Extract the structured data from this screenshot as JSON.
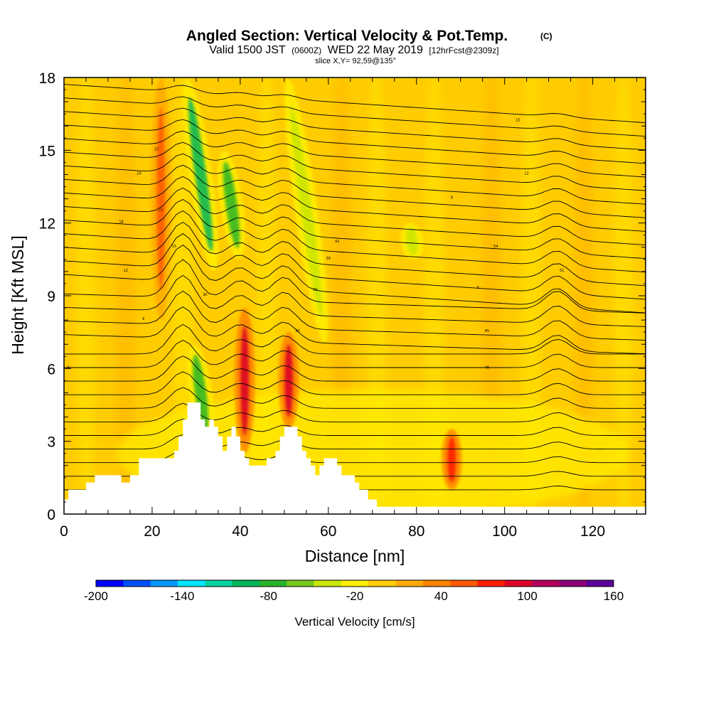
{
  "chart_data": {
    "type": "heatmap",
    "title": "Angled Section: Vertical Velocity & Pot.Temp.",
    "title_unit": "(C)",
    "subtitle_parts": [
      "Valid 1500 JST",
      "(0600Z)",
      "WED 22 May 2019",
      "[12hrFcst@2309z]"
    ],
    "slice_text": "slice X,Y= 92,59@135°",
    "xlabel": "Distance [nm]",
    "ylabel": "Height [Kft MSL]",
    "xlim": [
      0,
      132
    ],
    "ylim": [
      0,
      18
    ],
    "x_ticks": [
      0,
      20,
      40,
      60,
      80,
      100,
      120
    ],
    "y_ticks": [
      0,
      3,
      6,
      9,
      12,
      15,
      18
    ],
    "colorbar": {
      "title": "Vertical Velocity [cm/s]",
      "levels": [
        -200,
        -180,
        -160,
        -140,
        -120,
        -100,
        -80,
        -60,
        -40,
        -20,
        0,
        20,
        40,
        60,
        80,
        100,
        120,
        140,
        160
      ],
      "colors": [
        "#0000ff",
        "#0050ff",
        "#0096ff",
        "#00e6ff",
        "#00d2a0",
        "#00b45a",
        "#28b428",
        "#78c81e",
        "#c8e600",
        "#ffee00",
        "#ffcc00",
        "#ffaa00",
        "#ff8200",
        "#ff5a00",
        "#ff1e00",
        "#dc0028",
        "#b4005a",
        "#8c0078",
        "#5a0096"
      ],
      "tick_labels": [
        -200,
        -140,
        -80,
        -20,
        40,
        100,
        160
      ]
    },
    "background_level_range": [
      0,
      20
    ],
    "updraft_bands": [
      {
        "x_center": 22,
        "z_range": [
          8,
          18
        ],
        "value": 60
      },
      {
        "x_center": 41,
        "z_range": [
          2.5,
          8.5
        ],
        "value": 100
      },
      {
        "x_center": 51,
        "z_range": [
          3.5,
          7.5
        ],
        "value": 100
      },
      {
        "x_center": 88,
        "z_range": [
          1,
          3.5
        ],
        "value": 80
      }
    ],
    "downdraft_bands": [
      {
        "x_center": 31,
        "z_range": [
          10,
          18
        ],
        "value": -100
      },
      {
        "x_center": 38,
        "z_range": [
          10.5,
          15
        ],
        "value": -80
      },
      {
        "x_center": 31,
        "z_range": [
          3,
          7
        ],
        "value": -80
      },
      {
        "x_center": 55,
        "z_range": [
          7,
          18
        ],
        "value": -40
      },
      {
        "x_center": 79,
        "z_range": [
          10.5,
          12
        ],
        "value": -30
      }
    ],
    "terrain": [
      [
        0,
        0.6
      ],
      [
        1,
        1.0
      ],
      [
        5,
        1.3
      ],
      [
        7,
        1.6
      ],
      [
        13,
        1.3
      ],
      [
        15,
        1.6
      ],
      [
        17,
        2.3
      ],
      [
        25,
        2.6
      ],
      [
        26,
        3.2
      ],
      [
        27,
        3.9
      ],
      [
        28,
        4.6
      ],
      [
        30,
        4.6
      ],
      [
        31,
        3.9
      ],
      [
        32,
        3.6
      ],
      [
        33,
        3.9
      ],
      [
        34,
        3.6
      ],
      [
        35,
        3.2
      ],
      [
        36,
        2.6
      ],
      [
        37,
        3.2
      ],
      [
        38,
        3.6
      ],
      [
        39,
        3.2
      ],
      [
        40,
        2.6
      ],
      [
        41,
        2.3
      ],
      [
        42,
        2.0
      ],
      [
        45,
        2.0
      ],
      [
        46,
        2.3
      ],
      [
        48,
        2.6
      ],
      [
        49,
        3.2
      ],
      [
        50,
        3.6
      ],
      [
        52,
        3.6
      ],
      [
        53,
        3.2
      ],
      [
        54,
        2.6
      ],
      [
        55,
        2.3
      ],
      [
        56,
        2.0
      ],
      [
        57,
        1.6
      ],
      [
        58,
        2.0
      ],
      [
        59,
        2.3
      ],
      [
        61,
        2.3
      ],
      [
        62,
        2.0
      ],
      [
        63,
        1.6
      ],
      [
        66,
        1.3
      ],
      [
        67,
        1.0
      ],
      [
        69,
        0.6
      ],
      [
        71,
        0.3
      ],
      [
        132,
        0.3
      ]
    ],
    "contour_labels": [
      "6",
      "9",
      "12",
      "15",
      "18",
      "21",
      "24",
      "27",
      "30",
      "33",
      "36",
      "39",
      "42",
      "45",
      "48",
      "51",
      "54"
    ]
  }
}
